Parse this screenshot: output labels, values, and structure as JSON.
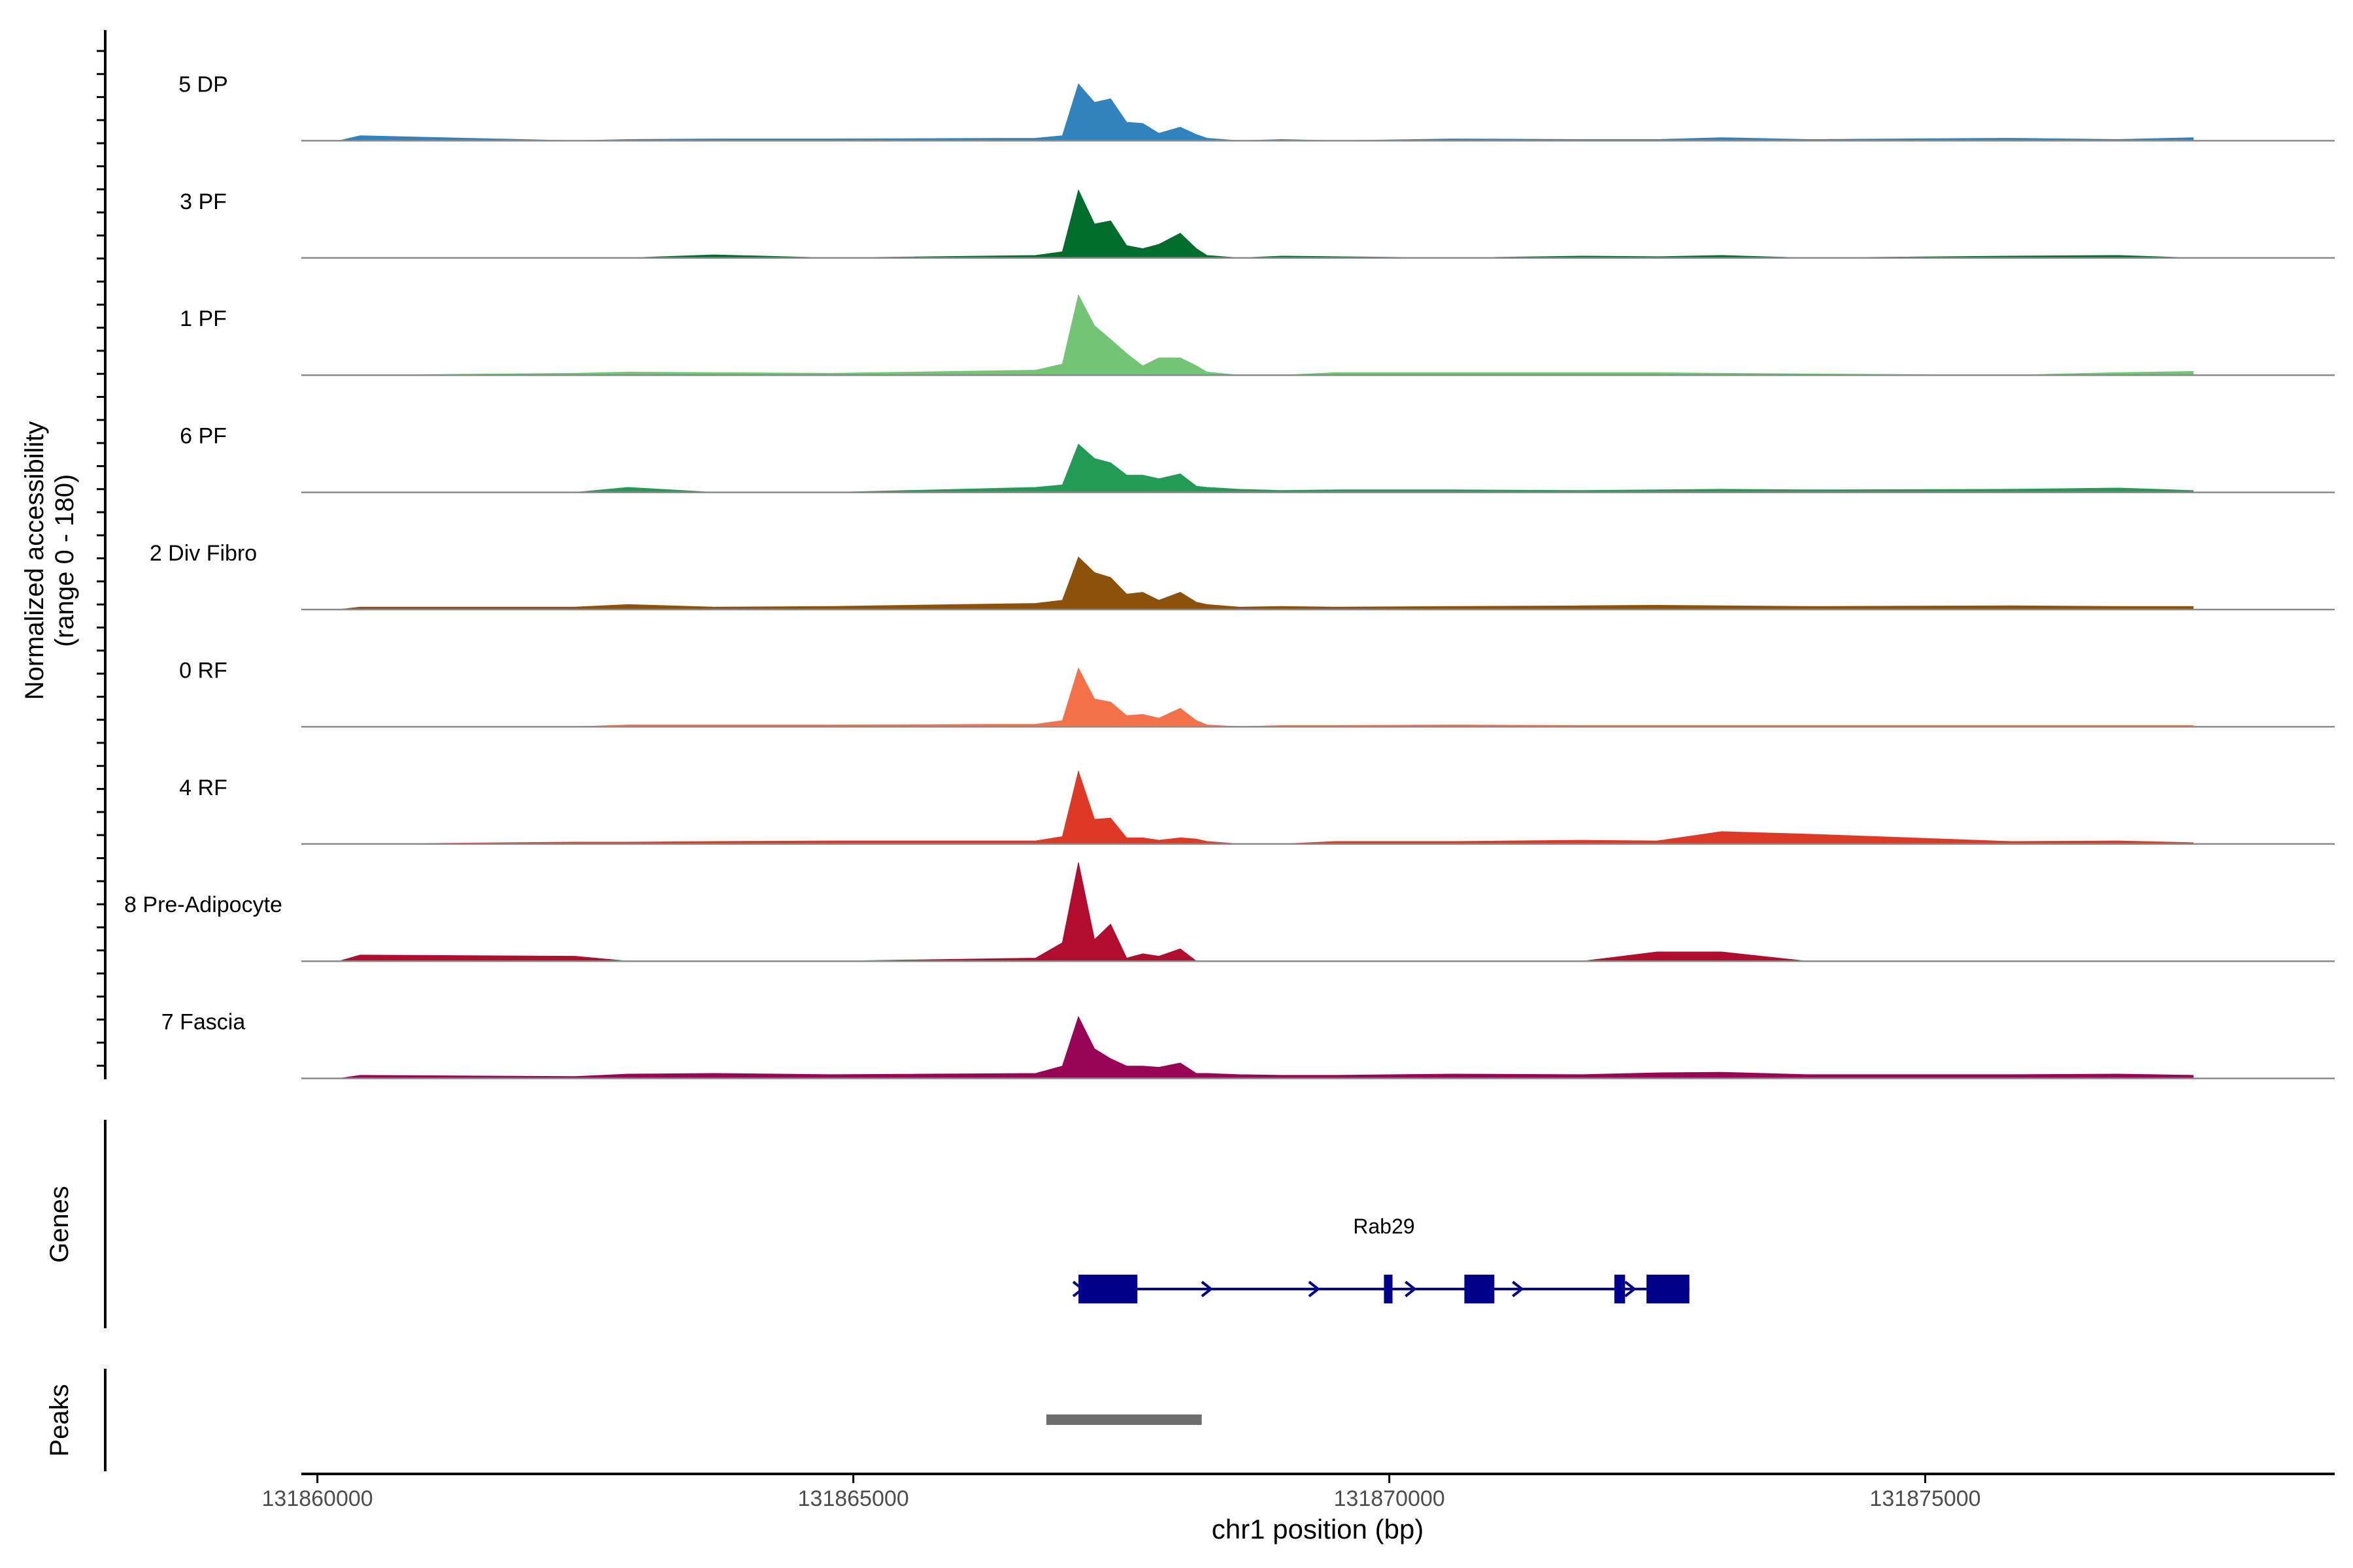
{
  "chart_data": {
    "type": "area",
    "title": "",
    "ylabel_line1": "Normalized accessibility",
    "ylabel_line2": "(range 0 - 180)",
    "xlabel": "chr1 position (bp)",
    "ylim": [
      0,
      180
    ],
    "xlim": [
      131859850,
      131878820
    ],
    "x_ticks": [
      131860000,
      131865000,
      131870000,
      131875000
    ],
    "x_tick_labels": [
      "131860000",
      "131865000",
      "131870000",
      "131875000"
    ],
    "track_labels": {
      "genes": "Genes",
      "peaks": "Peaks"
    },
    "positions": [
      131860200,
      131860400,
      131862400,
      131862900,
      131863700,
      131864800,
      131866700,
      131866950,
      131867100,
      131867250,
      131867400,
      131867550,
      131867700,
      131867850,
      131868050,
      131868200,
      131868300,
      131868600,
      131869000,
      131869500,
      131870600,
      131871800,
      131872500,
      131873100,
      131873900,
      131875800,
      131876800,
      131877500
    ],
    "series": [
      {
        "name": "5 DP",
        "color": "#3182bd",
        "values": [
          0,
          8,
          0,
          2,
          3,
          3,
          4,
          8,
          92,
          62,
          68,
          30,
          28,
          12,
          22,
          10,
          4,
          0,
          2,
          0,
          3,
          2,
          2,
          5,
          2,
          4,
          2,
          5
        ]
      },
      {
        "name": "3 PF",
        "color": "#006d2c",
        "values": [
          0,
          0,
          0,
          0,
          5,
          0,
          4,
          10,
          110,
          55,
          60,
          20,
          15,
          22,
          40,
          15,
          4,
          0,
          3,
          2,
          0,
          3,
          2,
          4,
          0,
          3,
          4,
          0
        ]
      },
      {
        "name": "1 PF",
        "color": "#74c476",
        "values": [
          0,
          0,
          3,
          5,
          4,
          3,
          8,
          18,
          130,
          80,
          58,
          35,
          15,
          28,
          28,
          15,
          5,
          0,
          0,
          4,
          4,
          4,
          4,
          3,
          2,
          0,
          4,
          6
        ]
      },
      {
        "name": "6 PF",
        "color": "#239b56",
        "values": [
          0,
          0,
          0,
          8,
          0,
          0,
          8,
          12,
          78,
          55,
          48,
          28,
          28,
          22,
          30,
          10,
          8,
          5,
          3,
          4,
          4,
          3,
          4,
          5,
          4,
          5,
          7,
          3
        ]
      },
      {
        "name": "2 Div Fibro",
        "color": "#8c510a",
        "values": [
          0,
          4,
          4,
          8,
          4,
          5,
          10,
          15,
          85,
          60,
          52,
          25,
          28,
          15,
          28,
          12,
          8,
          4,
          5,
          4,
          5,
          6,
          7,
          6,
          5,
          6,
          5,
          5
        ]
      },
      {
        "name": "0 RF",
        "color": "#f4714a",
        "values": [
          0,
          0,
          0,
          3,
          3,
          3,
          4,
          10,
          95,
          45,
          40,
          18,
          20,
          14,
          30,
          10,
          3,
          0,
          2,
          2,
          3,
          2,
          2,
          2,
          2,
          2,
          2,
          2
        ]
      },
      {
        "name": "4 RF",
        "color": "#de3826",
        "values": [
          0,
          0,
          3,
          3,
          4,
          5,
          5,
          12,
          118,
          40,
          42,
          10,
          10,
          6,
          10,
          8,
          4,
          0,
          0,
          4,
          4,
          6,
          5,
          20,
          16,
          4,
          5,
          2
        ]
      },
      {
        "name": "8 Pre-Adipocyte",
        "color": "#b20c2e",
        "values": [
          0,
          10,
          8,
          0,
          0,
          0,
          5,
          30,
          160,
          35,
          60,
          5,
          12,
          8,
          20,
          0,
          0,
          0,
          0,
          0,
          0,
          0,
          15,
          15,
          0,
          0,
          0,
          0
        ]
      },
      {
        "name": "7 Fascia",
        "color": "#980557",
        "values": [
          0,
          5,
          3,
          7,
          8,
          6,
          8,
          20,
          100,
          48,
          32,
          20,
          20,
          18,
          25,
          8,
          8,
          6,
          5,
          5,
          7,
          6,
          9,
          10,
          6,
          6,
          7,
          5
        ]
      }
    ],
    "gene": {
      "name": "Rab29",
      "color": "#00008b",
      "start": 131867100,
      "end": 131872800,
      "exons": [
        [
          131867100,
          131867650
        ],
        [
          131869950,
          131870030
        ],
        [
          131870700,
          131870980
        ],
        [
          131872100,
          131872200
        ],
        [
          131872400,
          131872800
        ]
      ],
      "arrows": [
        131867100,
        131868300,
        131869300,
        131870200,
        131871200,
        131872250
      ]
    },
    "peak": {
      "start": 131866800,
      "end": 131868250,
      "color": "#6e6e6e"
    }
  }
}
